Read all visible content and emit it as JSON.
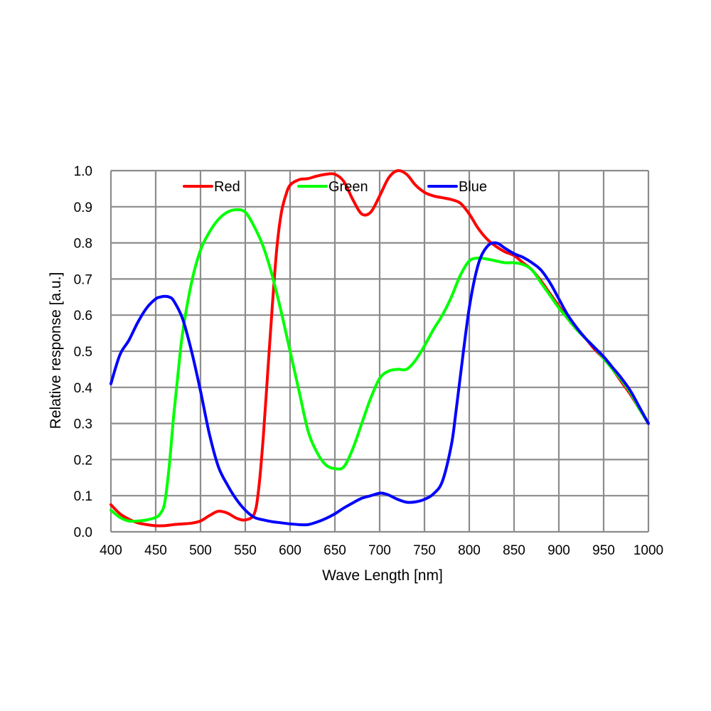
{
  "chart_data": {
    "type": "line",
    "title": "",
    "xlabel": "Wave Length [nm]",
    "ylabel": "Relative response [a.u.]",
    "xlim": [
      400,
      1000
    ],
    "ylim": [
      0,
      1
    ],
    "x_ticks": [
      400,
      450,
      500,
      550,
      600,
      650,
      700,
      750,
      800,
      850,
      900,
      950,
      1000
    ],
    "x_tick_labels": [
      "400",
      "450",
      "500",
      "550",
      "600",
      "650",
      "700",
      "750",
      "800",
      "850",
      "900",
      "950",
      "1000"
    ],
    "y_ticks": [
      0,
      0.1,
      0.2,
      0.3,
      0.4,
      0.5,
      0.6,
      0.7,
      0.8,
      0.9,
      1.0
    ],
    "y_tick_labels": [
      "0.0",
      "0.1",
      "0.2",
      "0.3",
      "0.4",
      "0.5",
      "0.6",
      "0.7",
      "0.8",
      "0.9",
      "1.0"
    ],
    "grid": true,
    "legend": "top",
    "series": [
      {
        "name": "Red",
        "color": "#ff0000",
        "x": [
          400,
          410,
          420,
          430,
          440,
          450,
          460,
          470,
          480,
          490,
          500,
          510,
          520,
          530,
          540,
          550,
          560,
          565,
          570,
          575,
          580,
          585,
          590,
          595,
          600,
          610,
          620,
          630,
          640,
          650,
          660,
          670,
          680,
          690,
          700,
          710,
          720,
          730,
          740,
          750,
          760,
          770,
          780,
          790,
          800,
          810,
          820,
          830,
          840,
          850,
          860,
          870,
          880,
          890,
          900,
          910,
          920,
          930,
          940,
          950,
          960,
          970,
          980,
          990,
          1000
        ],
        "y": [
          0.075,
          0.05,
          0.035,
          0.025,
          0.02,
          0.017,
          0.017,
          0.02,
          0.022,
          0.024,
          0.03,
          0.045,
          0.057,
          0.052,
          0.038,
          0.033,
          0.05,
          0.12,
          0.26,
          0.44,
          0.62,
          0.78,
          0.88,
          0.93,
          0.96,
          0.975,
          0.978,
          0.985,
          0.99,
          0.99,
          0.97,
          0.92,
          0.88,
          0.885,
          0.93,
          0.98,
          1.0,
          0.99,
          0.96,
          0.94,
          0.93,
          0.925,
          0.92,
          0.91,
          0.88,
          0.84,
          0.81,
          0.79,
          0.775,
          0.765,
          0.745,
          0.725,
          0.695,
          0.66,
          0.625,
          0.59,
          0.56,
          0.535,
          0.505,
          0.48,
          0.45,
          0.415,
          0.38,
          0.34,
          0.3
        ]
      },
      {
        "name": "Green",
        "color": "#00ff00",
        "x": [
          400,
          410,
          420,
          430,
          440,
          450,
          455,
          460,
          465,
          470,
          475,
          480,
          490,
          500,
          510,
          520,
          530,
          540,
          550,
          560,
          570,
          580,
          590,
          600,
          610,
          620,
          630,
          640,
          650,
          660,
          670,
          680,
          690,
          700,
          710,
          720,
          730,
          740,
          750,
          760,
          770,
          780,
          790,
          800,
          810,
          820,
          830,
          840,
          850,
          860,
          870,
          880,
          890,
          900,
          910,
          920,
          930,
          940,
          950,
          960,
          970,
          980,
          990,
          1000
        ],
        "y": [
          0.06,
          0.04,
          0.03,
          0.03,
          0.033,
          0.04,
          0.05,
          0.08,
          0.18,
          0.32,
          0.44,
          0.55,
          0.69,
          0.78,
          0.83,
          0.865,
          0.885,
          0.892,
          0.885,
          0.845,
          0.79,
          0.71,
          0.61,
          0.5,
          0.39,
          0.28,
          0.22,
          0.185,
          0.175,
          0.18,
          0.23,
          0.3,
          0.37,
          0.425,
          0.445,
          0.45,
          0.45,
          0.475,
          0.515,
          0.56,
          0.6,
          0.65,
          0.71,
          0.75,
          0.758,
          0.755,
          0.75,
          0.745,
          0.745,
          0.74,
          0.725,
          0.69,
          0.655,
          0.62,
          0.59,
          0.56,
          0.535,
          0.51,
          0.48,
          0.45,
          0.42,
          0.385,
          0.34,
          0.3
        ]
      },
      {
        "name": "Blue",
        "color": "#0000ff",
        "x": [
          400,
          410,
          420,
          430,
          440,
          450,
          455,
          460,
          465,
          470,
          480,
          490,
          500,
          510,
          520,
          530,
          540,
          550,
          560,
          570,
          580,
          590,
          600,
          610,
          620,
          630,
          640,
          650,
          660,
          670,
          680,
          690,
          700,
          705,
          710,
          720,
          730,
          740,
          750,
          760,
          770,
          780,
          785,
          790,
          800,
          810,
          820,
          830,
          840,
          850,
          860,
          870,
          880,
          890,
          900,
          910,
          920,
          930,
          940,
          950,
          960,
          970,
          980,
          990,
          1000
        ],
        "y": [
          0.41,
          0.49,
          0.53,
          0.58,
          0.62,
          0.645,
          0.65,
          0.652,
          0.65,
          0.64,
          0.59,
          0.5,
          0.39,
          0.27,
          0.18,
          0.13,
          0.09,
          0.06,
          0.04,
          0.033,
          0.028,
          0.025,
          0.022,
          0.02,
          0.02,
          0.027,
          0.037,
          0.05,
          0.066,
          0.08,
          0.093,
          0.1,
          0.107,
          0.106,
          0.102,
          0.09,
          0.082,
          0.083,
          0.09,
          0.105,
          0.14,
          0.24,
          0.33,
          0.43,
          0.62,
          0.74,
          0.79,
          0.8,
          0.785,
          0.77,
          0.76,
          0.745,
          0.725,
          0.69,
          0.645,
          0.6,
          0.565,
          0.535,
          0.51,
          0.485,
          0.455,
          0.425,
          0.39,
          0.345,
          0.3
        ]
      }
    ]
  }
}
